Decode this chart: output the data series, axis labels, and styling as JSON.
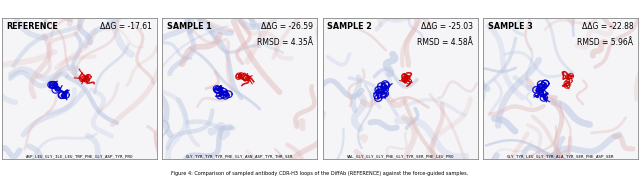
{
  "panels": [
    {
      "title": "REFERENCE",
      "ddg": "ΔΔG = -17.61",
      "rmsd": null,
      "sequence": "ASP_LEU_GLY_ILE_LEU_TRP_PHE_GLY_ASP_TYR_PRO",
      "bg_seed": 10,
      "blue_seed": 20,
      "red_seed": 30
    },
    {
      "title": "SAMPLE 1",
      "ddg": "ΔΔG = -26.59",
      "rmsd": "RMSD = 4.35Å",
      "sequence": "GLY_TYR_TYR_TYR_PHE_GLY_ASN_ASP_TYR_THR_SER",
      "bg_seed": 11,
      "blue_seed": 21,
      "red_seed": 31
    },
    {
      "title": "SAMPLE 2",
      "ddg": "ΔΔG = -25.03",
      "rmsd": "RMSD = 4.58Å",
      "sequence": "VAL_GLY_GLY_GLY_PHE_GLY_TYR_SER_PHE_LEU_PRO",
      "bg_seed": 12,
      "blue_seed": 22,
      "red_seed": 32
    },
    {
      "title": "SAMPLE 3",
      "ddg": "ΔΔG = -22.88",
      "rmsd": "RMSD = 5.96Å",
      "sequence": "GLY_TYR_LEU_GLY_TYR_ALA_TYR_SER_PHE_ASP_SER",
      "bg_seed": 13,
      "blue_seed": 23,
      "red_seed": 33
    }
  ],
  "bg_color": "#ffffff",
  "panel_border_color": "#888888",
  "text_color": "#000000",
  "caption": "Figure 4: Comparison of sampled antibody CDR-H3 loops of the DiffAb (REFERENCE) against the force-guided samples.",
  "ribbon_blue_light": "#b8c4e0",
  "ribbon_red_light": "#e0b8b8",
  "chain_blue": "#0000cc",
  "chain_red": "#cc0000",
  "chain_blue_dark": "#000080",
  "chain_red_dark": "#800000"
}
